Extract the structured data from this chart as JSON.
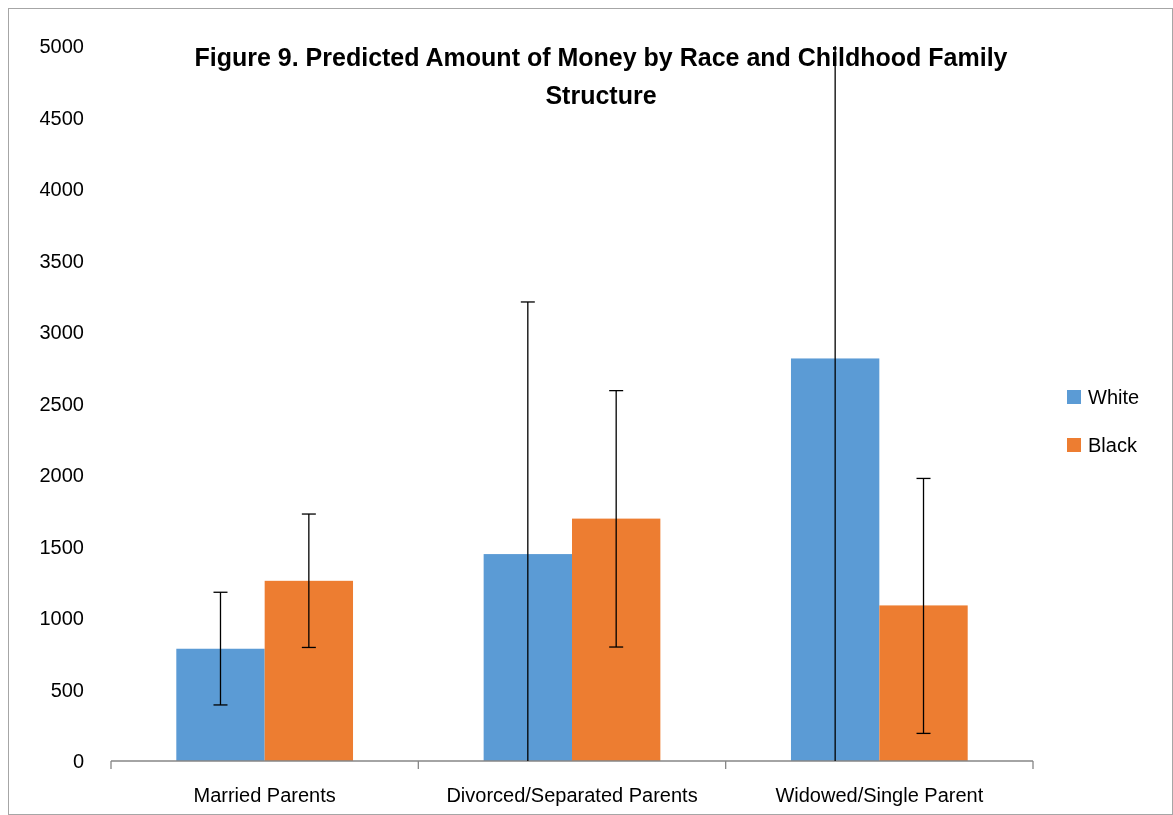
{
  "chart_data": {
    "type": "bar",
    "title": "Figure 9. Predicted Amount of Money by Race and Childhood Family Structure",
    "categories": [
      "Married Parents",
      "Divorced/Separated Parents",
      "Widowed/Single Parent"
    ],
    "series": [
      {
        "name": "White",
        "color": "#5b9bd5",
        "values": [
          785,
          1447,
          2815
        ],
        "errors": [
          [
            392,
            1180
          ],
          [
            0,
            3210
          ],
          [
            0,
            5000
          ]
        ]
      },
      {
        "name": "Black",
        "color": "#ed7d31",
        "values": [
          1260,
          1695,
          1088
        ],
        "errors": [
          [
            794,
            1727
          ],
          [
            797,
            2590
          ],
          [
            193,
            1976
          ]
        ]
      }
    ],
    "ylim": [
      0,
      5000
    ],
    "yticks": [
      0,
      500,
      1000,
      1500,
      2000,
      2500,
      3000,
      3500,
      4000,
      4500,
      5000
    ],
    "grid": false,
    "legend": "right"
  }
}
